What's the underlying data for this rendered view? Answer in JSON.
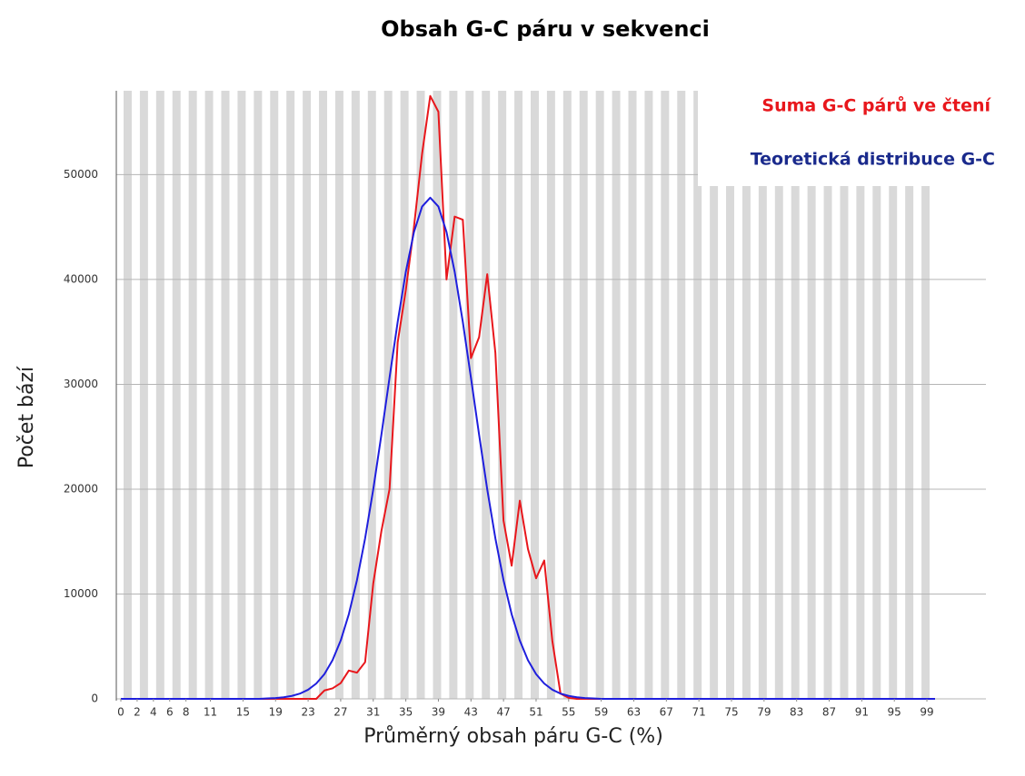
{
  "chart_data": {
    "type": "line",
    "title": "Obsah G-C páru v sekvenci",
    "x_label": "Průměrný obsah páru G-C (%)",
    "y_label": "Počet bází",
    "x": [
      0,
      1,
      2,
      3,
      4,
      5,
      6,
      7,
      8,
      9,
      10,
      11,
      12,
      13,
      14,
      15,
      16,
      17,
      18,
      19,
      20,
      21,
      22,
      23,
      24,
      25,
      26,
      27,
      28,
      29,
      30,
      31,
      32,
      33,
      34,
      35,
      36,
      37,
      38,
      39,
      40,
      41,
      42,
      43,
      44,
      45,
      46,
      47,
      48,
      49,
      50,
      51,
      52,
      53,
      54,
      55,
      56,
      57,
      58,
      59,
      60,
      61,
      62,
      63,
      64,
      65,
      66,
      67,
      68,
      69,
      70,
      71,
      72,
      73,
      74,
      75,
      76,
      77,
      78,
      79,
      80,
      81,
      82,
      83,
      84,
      85,
      86,
      87,
      88,
      89,
      90,
      91,
      92,
      93,
      94,
      95,
      96,
      97,
      98,
      99,
      100
    ],
    "series": [
      {
        "name": "Suma G-C párů ve čtení",
        "color": "#e8171c",
        "values": [
          0,
          0,
          0,
          0,
          0,
          0,
          0,
          0,
          0,
          0,
          0,
          0,
          0,
          0,
          0,
          0,
          0,
          0,
          0,
          0,
          0,
          0,
          0,
          0,
          0,
          800,
          1000,
          1500,
          2700,
          2500,
          3500,
          11000,
          16000,
          20000,
          34000,
          39000,
          45000,
          52000,
          57500,
          56000,
          40000,
          46000,
          45700,
          32500,
          34500,
          40500,
          33000,
          17000,
          12700,
          18900,
          14300,
          11500,
          13200,
          5500,
          500,
          100,
          0,
          0,
          0,
          0,
          0,
          0,
          0,
          0,
          0,
          0,
          0,
          0,
          0,
          0,
          0,
          0,
          0,
          0,
          0,
          0,
          0,
          0,
          0,
          0,
          0,
          0,
          0,
          0,
          0,
          0,
          0,
          0,
          0,
          0,
          0,
          0,
          0,
          0,
          0,
          0,
          0,
          0,
          0,
          0,
          0
        ]
      },
      {
        "name": "Teoretická distribuce G-C",
        "color": "#1f1fdd",
        "values": [
          0,
          0,
          0,
          0,
          0,
          0,
          0,
          0,
          0,
          0,
          0,
          0,
          0,
          0,
          0,
          0,
          0,
          0,
          40,
          80,
          150,
          280,
          500,
          870,
          1460,
          2360,
          3690,
          5560,
          8070,
          11320,
          15310,
          19980,
          25190,
          30630,
          35950,
          40730,
          44520,
          46960,
          47800,
          46960,
          44520,
          40730,
          35950,
          30630,
          25190,
          19980,
          15310,
          11320,
          8070,
          5560,
          3690,
          2360,
          1460,
          870,
          500,
          280,
          150,
          80,
          40,
          0,
          0,
          0,
          0,
          0,
          0,
          0,
          0,
          0,
          0,
          0,
          0,
          0,
          0,
          0,
          0,
          0,
          0,
          0,
          0,
          0,
          0,
          0,
          0,
          0,
          0,
          0,
          0,
          0,
          0,
          0,
          0,
          0,
          0,
          0,
          0,
          0,
          0,
          0,
          0,
          0,
          0
        ]
      }
    ],
    "legend_text_colors": [
      "#e8171c",
      "#1a2a8c"
    ],
    "xlim": [
      0,
      100
    ],
    "xticks": [
      0,
      2,
      4,
      6,
      8,
      11,
      15,
      19,
      23,
      27,
      31,
      35,
      39,
      43,
      47,
      51,
      55,
      59,
      63,
      67,
      71,
      75,
      79,
      83,
      87,
      91,
      95,
      99
    ],
    "ylim": [
      0,
      58000
    ],
    "yticks": [
      0,
      10000,
      20000,
      30000,
      40000,
      50000
    ],
    "grid": true,
    "legend": "upper right"
  }
}
